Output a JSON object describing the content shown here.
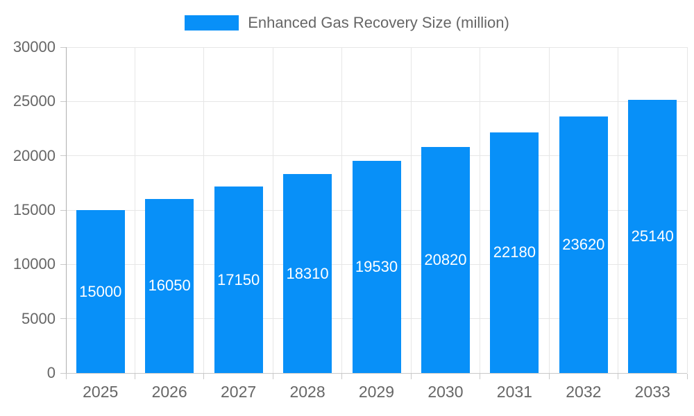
{
  "chart_data": {
    "type": "bar",
    "title": "Enhanced Gas Recovery Size (million)",
    "categories": [
      "2025",
      "2026",
      "2027",
      "2028",
      "2029",
      "2030",
      "2031",
      "2032",
      "2033"
    ],
    "values": [
      15000,
      16050,
      17150,
      18310,
      19530,
      20820,
      22180,
      23620,
      25140
    ],
    "xlabel": "",
    "ylabel": "",
    "ylim": [
      0,
      30000
    ],
    "ytick_step": 5000,
    "ytick_labels": [
      "0",
      "5000",
      "10000",
      "15000",
      "20000",
      "25000",
      "30000"
    ],
    "legend_position": "top",
    "grid": true,
    "colors": {
      "bar": "#0890f8",
      "bar_value_text": "#ffffff",
      "axis_text": "#666666",
      "gridline": "#e6e6e6",
      "y_axis_line": "#b0b0b0",
      "x_axis_line": "#c9c9c9",
      "tick": "#c9c9c9",
      "background": "#ffffff"
    }
  }
}
